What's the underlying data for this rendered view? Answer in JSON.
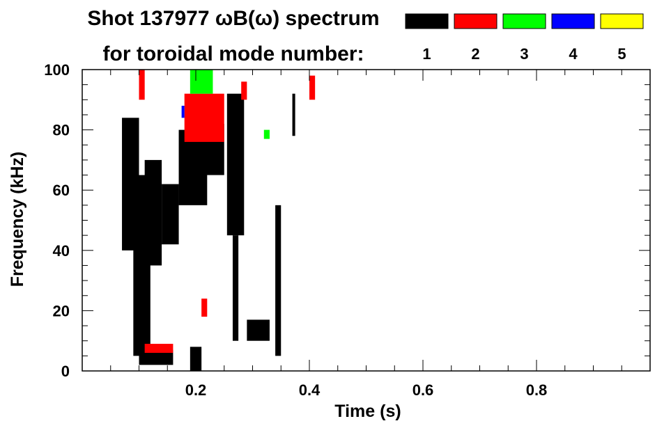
{
  "chart_data": {
    "type": "heatmap",
    "title": "Shot 137977 ωB(ω) spectrum",
    "subtitle": "for toroidal mode number:",
    "xlabel": "Time (s)",
    "ylabel": "Frequency (kHz)",
    "xlim": [
      0.0,
      1.0
    ],
    "ylim": [
      0,
      100
    ],
    "x_ticks": [
      0.2,
      0.4,
      0.6,
      0.8
    ],
    "x_tick_labels": [
      "0.2",
      "0.4",
      "0.6",
      "0.8"
    ],
    "y_ticks": [
      0,
      20,
      40,
      60,
      80,
      100
    ],
    "y_tick_labels": [
      "0",
      "20",
      "40",
      "60",
      "80",
      "100"
    ],
    "grid": false,
    "legend_placement": "top-right",
    "legend": [
      {
        "label": "1",
        "color": "#000000"
      },
      {
        "label": "2",
        "color": "#ff0000"
      },
      {
        "label": "3",
        "color": "#00ff00"
      },
      {
        "label": "4",
        "color": "#0000ff"
      },
      {
        "label": "5",
        "color": "#ffff00"
      }
    ],
    "regions": [
      {
        "mode": "1",
        "t": [
          0.07,
          0.1
        ],
        "f": [
          40,
          84
        ]
      },
      {
        "mode": "1",
        "t": [
          0.09,
          0.12
        ],
        "f": [
          5,
          65
        ]
      },
      {
        "mode": "1",
        "t": [
          0.11,
          0.14
        ],
        "f": [
          35,
          70
        ]
      },
      {
        "mode": "1",
        "t": [
          0.14,
          0.17
        ],
        "f": [
          42,
          62
        ]
      },
      {
        "mode": "1",
        "t": [
          0.17,
          0.22
        ],
        "f": [
          55,
          80
        ]
      },
      {
        "mode": "1",
        "t": [
          0.19,
          0.21
        ],
        "f": [
          0,
          8
        ]
      },
      {
        "mode": "1",
        "t": [
          0.21,
          0.25
        ],
        "f": [
          65,
          82
        ]
      },
      {
        "mode": "1",
        "t": [
          0.255,
          0.285
        ],
        "f": [
          45,
          92
        ]
      },
      {
        "mode": "1",
        "t": [
          0.265,
          0.275
        ],
        "f": [
          10,
          45
        ]
      },
      {
        "mode": "1",
        "t": [
          0.29,
          0.33
        ],
        "f": [
          10,
          17
        ]
      },
      {
        "mode": "1",
        "t": [
          0.1,
          0.16
        ],
        "f": [
          2,
          7
        ]
      },
      {
        "mode": "1",
        "t": [
          0.34,
          0.35
        ],
        "f": [
          5,
          55
        ]
      },
      {
        "mode": "1",
        "t": [
          0.37,
          0.375
        ],
        "f": [
          78,
          92
        ]
      },
      {
        "mode": "2",
        "t": [
          0.1,
          0.11
        ],
        "f": [
          90,
          100
        ]
      },
      {
        "mode": "2",
        "t": [
          0.18,
          0.25
        ],
        "f": [
          76,
          92
        ]
      },
      {
        "mode": "2",
        "t": [
          0.28,
          0.29
        ],
        "f": [
          90,
          96
        ]
      },
      {
        "mode": "2",
        "t": [
          0.4,
          0.41
        ],
        "f": [
          90,
          98
        ]
      },
      {
        "mode": "2",
        "t": [
          0.21,
          0.22
        ],
        "f": [
          18,
          24
        ]
      },
      {
        "mode": "2",
        "t": [
          0.11,
          0.16
        ],
        "f": [
          6,
          9
        ]
      },
      {
        "mode": "3",
        "t": [
          0.19,
          0.23
        ],
        "f": [
          92,
          100
        ]
      },
      {
        "mode": "3",
        "t": [
          0.32,
          0.33
        ],
        "f": [
          77,
          80
        ]
      },
      {
        "mode": "4",
        "t": [
          0.175,
          0.18
        ],
        "f": [
          84,
          88
        ]
      }
    ]
  }
}
